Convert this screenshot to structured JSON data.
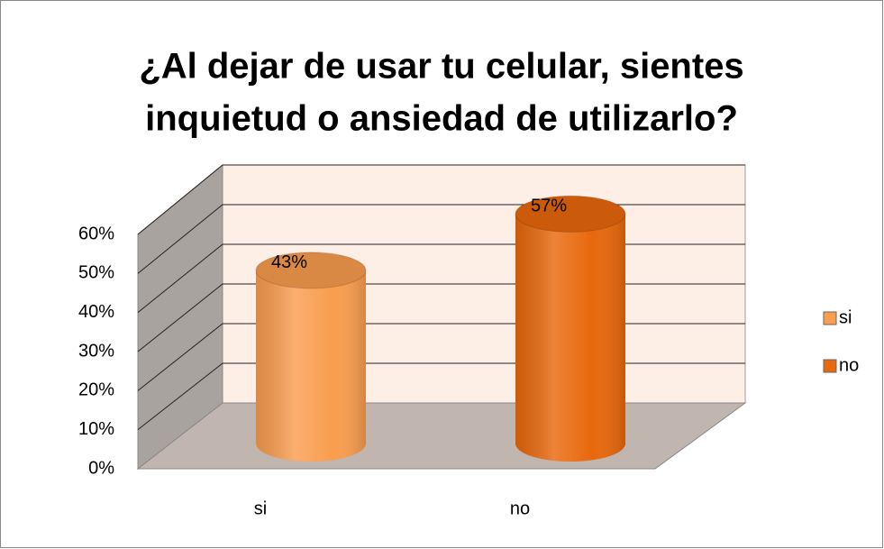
{
  "chart_data": {
    "type": "bar3d",
    "title": [
      "¿Al dejar de usar tu celular, sientes",
      "inquietud o ansiedad de utilizarlo?"
    ],
    "categories": [
      "si",
      "no"
    ],
    "values": [
      43,
      57
    ],
    "value_labels": [
      "43%",
      "57%"
    ],
    "colors": [
      "#f99d4f",
      "#e8680c"
    ],
    "ylim": [
      0,
      60
    ],
    "yticks": [
      {
        "value": 0,
        "label": "0%"
      },
      {
        "value": 10,
        "label": "10%"
      },
      {
        "value": 20,
        "label": "20%"
      },
      {
        "value": 30,
        "label": "30%"
      },
      {
        "value": 40,
        "label": "40%"
      },
      {
        "value": 50,
        "label": "50%"
      },
      {
        "value": 60,
        "label": "60%"
      }
    ],
    "grid": true,
    "legend": "right"
  }
}
